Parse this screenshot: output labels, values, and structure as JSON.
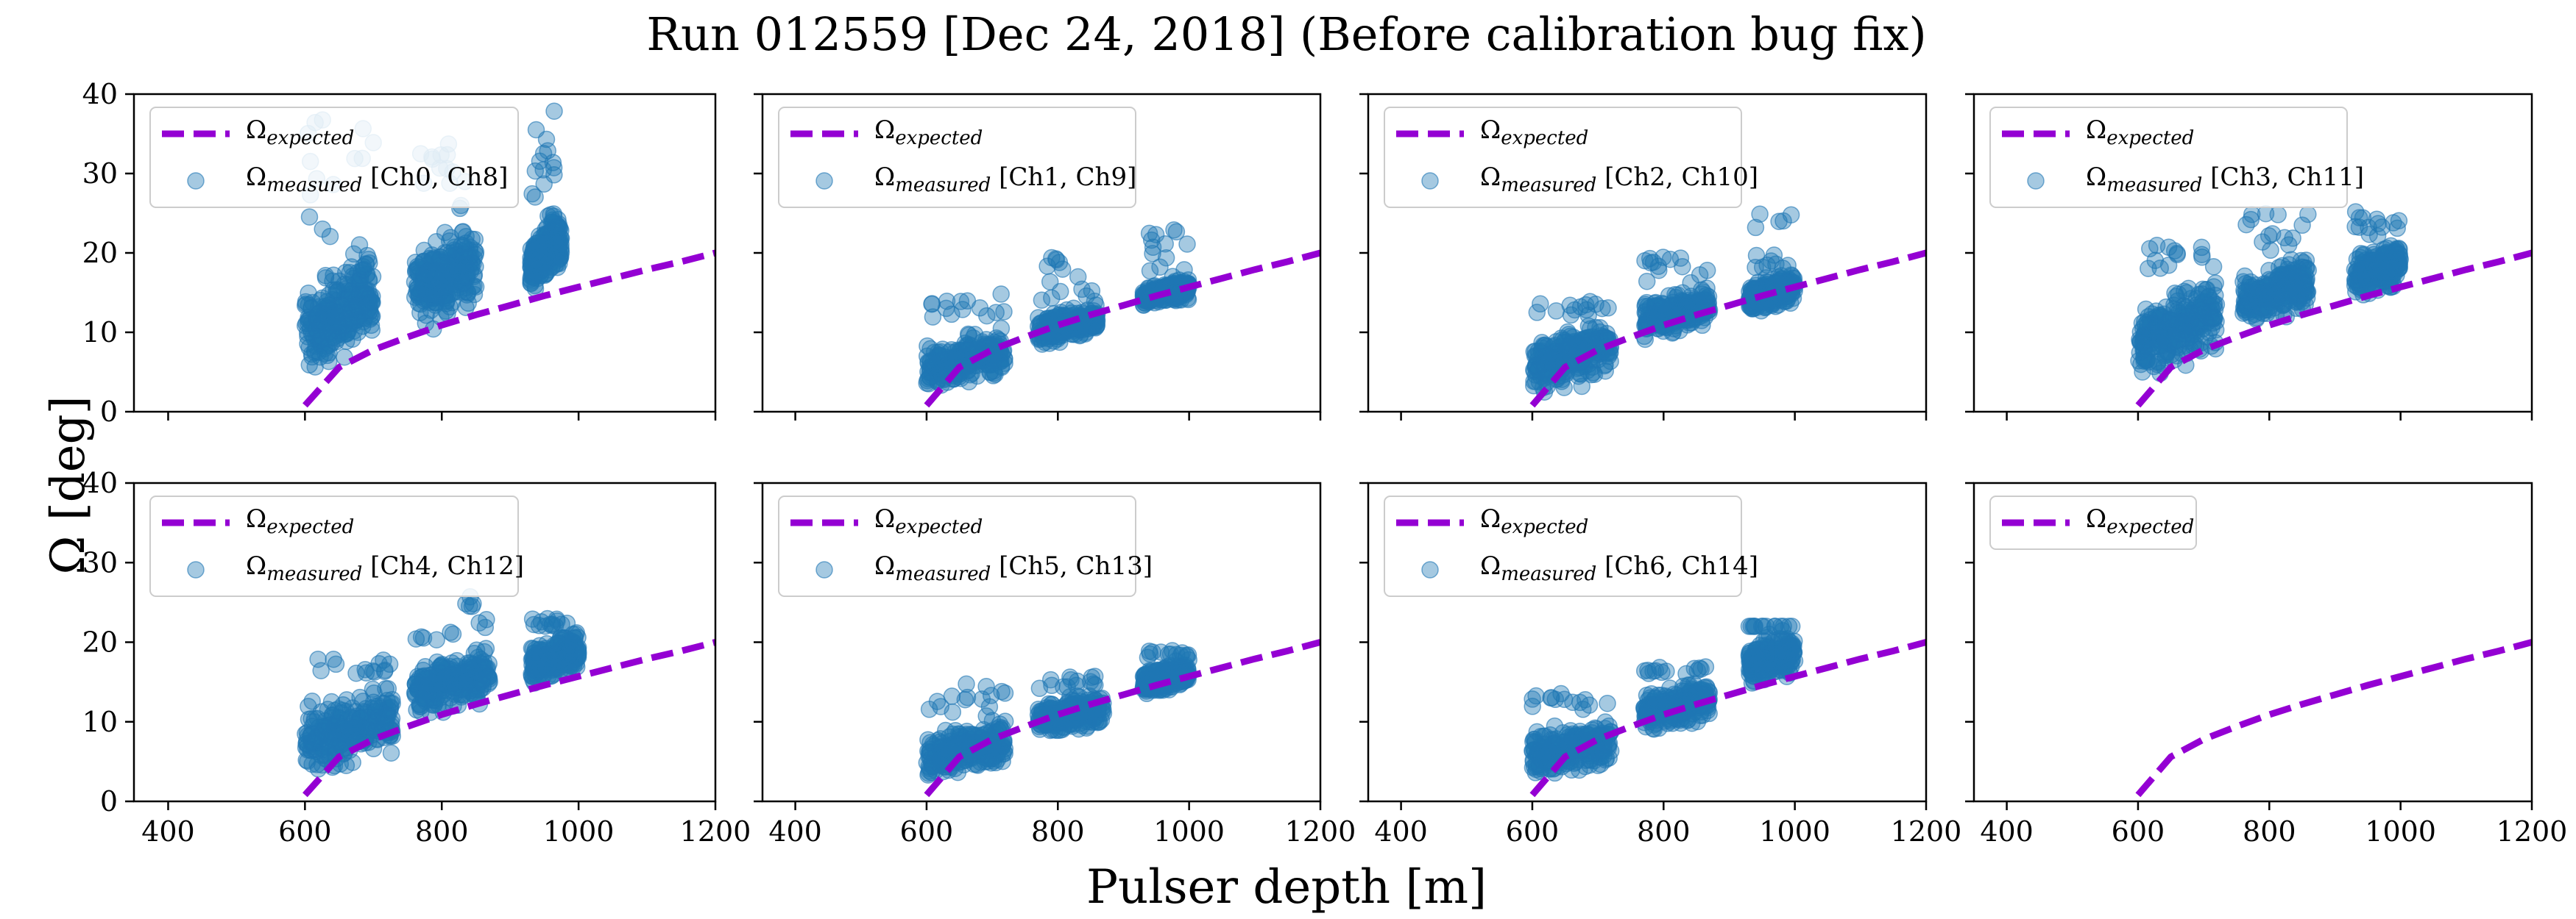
{
  "figure": {
    "title": "Run 012559 [Dec 24, 2018] (Before calibration bug fix)",
    "xlabel": "Pulser depth [m]",
    "ylabel": "Ω [deg]"
  },
  "colors": {
    "expected": "#9400d3",
    "measured": "#1f77b4"
  },
  "chart_data": [
    {
      "type": "scatter",
      "channels": "Ch0, Ch8",
      "xlim": [
        350,
        1200
      ],
      "ylim": [
        0,
        40
      ],
      "xticks": [
        400,
        600,
        800,
        1000,
        1200
      ],
      "yticks": [
        0,
        10,
        20,
        30,
        40
      ],
      "expected": {
        "name": "Ω_expected",
        "x": [
          600,
          650,
          700,
          750,
          800,
          850,
          900,
          950,
          1000,
          1050,
          1100,
          1150,
          1200
        ],
        "y": [
          0.8,
          5.6,
          7.8,
          9.4,
          10.9,
          12.2,
          13.4,
          14.6,
          15.7,
          16.8,
          17.9,
          18.9,
          20.0
        ]
      },
      "measured": {
        "name": "Ω_measured [Ch0, Ch8]",
        "clusters": [
          {
            "x_range": [
              600,
              700
            ],
            "y_low": 3,
            "y_high": 22,
            "y_max": 37
          },
          {
            "x_range": [
              760,
              850
            ],
            "y_low": 9,
            "y_high": 25,
            "y_max": 34
          },
          {
            "x_range": [
              930,
              975
            ],
            "y_low": 14,
            "y_high": 26,
            "y_max": 38
          }
        ]
      }
    },
    {
      "type": "scatter",
      "channels": "Ch1, Ch9",
      "xlim": [
        350,
        1200
      ],
      "ylim": [
        0,
        40
      ],
      "xticks": [
        400,
        600,
        800,
        1000,
        1200
      ],
      "yticks": [
        0,
        10,
        20,
        30,
        40
      ],
      "expected": {
        "name": "Ω_expected",
        "x": [
          600,
          650,
          700,
          750,
          800,
          850,
          900,
          950,
          1000,
          1050,
          1100,
          1150,
          1200
        ],
        "y": [
          0.8,
          5.6,
          7.8,
          9.4,
          10.9,
          12.2,
          13.4,
          14.6,
          15.7,
          16.8,
          17.9,
          18.9,
          20.0
        ]
      },
      "measured": {
        "name": "Ω_measured [Ch1, Ch9]",
        "clusters": [
          {
            "x_range": [
              600,
              720
            ],
            "y_low": 2,
            "y_high": 11,
            "y_max": 15
          },
          {
            "x_range": [
              770,
              860
            ],
            "y_low": 8,
            "y_high": 14,
            "y_max": 20
          },
          {
            "x_range": [
              930,
              1000
            ],
            "y_low": 13,
            "y_high": 17,
            "y_max": 23
          }
        ]
      }
    },
    {
      "type": "scatter",
      "channels": "Ch2, Ch10",
      "xlim": [
        350,
        1200
      ],
      "ylim": [
        0,
        40
      ],
      "xticks": [
        400,
        600,
        800,
        1000,
        1200
      ],
      "yticks": [
        0,
        10,
        20,
        30,
        40
      ],
      "expected": {
        "name": "Ω_expected",
        "x": [
          600,
          650,
          700,
          750,
          800,
          850,
          900,
          950,
          1000,
          1050,
          1100,
          1150,
          1200
        ],
        "y": [
          0.8,
          5.6,
          7.8,
          9.4,
          10.9,
          12.2,
          13.4,
          14.6,
          15.7,
          16.8,
          17.9,
          18.9,
          20.0
        ]
      },
      "measured": {
        "name": "Ω_measured [Ch2, Ch10]",
        "clusters": [
          {
            "x_range": [
              600,
              720
            ],
            "y_low": 2,
            "y_high": 12,
            "y_max": 14
          },
          {
            "x_range": [
              770,
              870
            ],
            "y_low": 9,
            "y_high": 16,
            "y_max": 20
          },
          {
            "x_range": [
              930,
              1000
            ],
            "y_low": 12,
            "y_high": 18,
            "y_max": 25
          }
        ]
      }
    },
    {
      "type": "scatter",
      "channels": "Ch3, Ch11",
      "xlim": [
        350,
        1200
      ],
      "ylim": [
        0,
        40
      ],
      "xticks": [
        400,
        600,
        800,
        1000,
        1200
      ],
      "yticks": [
        0,
        10,
        20,
        30,
        40
      ],
      "expected": {
        "name": "Ω_expected",
        "x": [
          600,
          650,
          700,
          750,
          800,
          850,
          900,
          950,
          1000,
          1050,
          1100,
          1150,
          1200
        ],
        "y": [
          0.8,
          5.6,
          7.8,
          9.4,
          10.9,
          12.2,
          13.4,
          14.6,
          15.7,
          16.8,
          17.9,
          18.9,
          20.0
        ]
      },
      "measured": {
        "name": "Ω_measured [Ch3, Ch11]",
        "clusters": [
          {
            "x_range": [
              600,
              720
            ],
            "y_low": 3,
            "y_high": 18,
            "y_max": 21
          },
          {
            "x_range": [
              760,
              860
            ],
            "y_low": 10,
            "y_high": 20,
            "y_max": 25
          },
          {
            "x_range": [
              930,
              1000
            ],
            "y_low": 14,
            "y_high": 22,
            "y_max": 26
          }
        ]
      }
    },
    {
      "type": "scatter",
      "channels": "Ch4, Ch12",
      "xlim": [
        350,
        1200
      ],
      "ylim": [
        0,
        40
      ],
      "xticks": [
        400,
        600,
        800,
        1000,
        1200
      ],
      "yticks": [
        0,
        10,
        20,
        30,
        40
      ],
      "expected": {
        "name": "Ω_expected",
        "x": [
          600,
          650,
          700,
          750,
          800,
          850,
          900,
          950,
          1000,
          1050,
          1100,
          1150,
          1200
        ],
        "y": [
          0.8,
          5.6,
          7.8,
          9.4,
          10.9,
          12.2,
          13.4,
          14.6,
          15.7,
          16.8,
          17.9,
          18.9,
          20.0
        ]
      },
      "measured": {
        "name": "Ω_measured [Ch4, Ch12]",
        "clusters": [
          {
            "x_range": [
              600,
              730
            ],
            "y_low": 2,
            "y_high": 16,
            "y_max": 18
          },
          {
            "x_range": [
              760,
              870
            ],
            "y_low": 10,
            "y_high": 20,
            "y_max": 26
          },
          {
            "x_range": [
              930,
              1000
            ],
            "y_low": 14,
            "y_high": 22,
            "y_max": 23
          }
        ]
      }
    },
    {
      "type": "scatter",
      "channels": "Ch5, Ch13",
      "xlim": [
        350,
        1200
      ],
      "ylim": [
        0,
        40
      ],
      "xticks": [
        400,
        600,
        800,
        1000,
        1200
      ],
      "yticks": [
        0,
        10,
        20,
        30,
        40
      ],
      "expected": {
        "name": "Ω_expected",
        "x": [
          600,
          650,
          700,
          750,
          800,
          850,
          900,
          950,
          1000,
          1050,
          1100,
          1150,
          1200
        ],
        "y": [
          0.8,
          5.6,
          7.8,
          9.4,
          10.9,
          12.2,
          13.4,
          14.6,
          15.7,
          16.8,
          17.9,
          18.9,
          20.0
        ]
      },
      "measured": {
        "name": "Ω_measured [Ch5, Ch13]",
        "clusters": [
          {
            "x_range": [
              600,
              720
            ],
            "y_low": 2,
            "y_high": 11,
            "y_max": 15
          },
          {
            "x_range": [
              770,
              870
            ],
            "y_low": 8,
            "y_high": 14,
            "y_max": 16
          },
          {
            "x_range": [
              930,
              1000
            ],
            "y_low": 13,
            "y_high": 18,
            "y_max": 19
          }
        ]
      }
    },
    {
      "type": "scatter",
      "channels": "Ch6, Ch14",
      "xlim": [
        350,
        1200
      ],
      "ylim": [
        0,
        40
      ],
      "xticks": [
        400,
        600,
        800,
        1000,
        1200
      ],
      "yticks": [
        0,
        10,
        20,
        30,
        40
      ],
      "expected": {
        "name": "Ω_expected",
        "x": [
          600,
          650,
          700,
          750,
          800,
          850,
          900,
          950,
          1000,
          1050,
          1100,
          1150,
          1200
        ],
        "y": [
          0.8,
          5.6,
          7.8,
          9.4,
          10.9,
          12.2,
          13.4,
          14.6,
          15.7,
          16.8,
          17.9,
          18.9,
          20.0
        ]
      },
      "measured": {
        "name": "Ω_measured [Ch6, Ch14]",
        "clusters": [
          {
            "x_range": [
              600,
              720
            ],
            "y_low": 2,
            "y_high": 11,
            "y_max": 14
          },
          {
            "x_range": [
              770,
              870
            ],
            "y_low": 8,
            "y_high": 16,
            "y_max": 17
          },
          {
            "x_range": [
              930,
              1000
            ],
            "y_low": 14,
            "y_high": 22,
            "y_max": 22
          }
        ]
      }
    },
    {
      "type": "line",
      "channels": "",
      "xlim": [
        350,
        1200
      ],
      "ylim": [
        0,
        40
      ],
      "xticks": [
        400,
        600,
        800,
        1000,
        1200
      ],
      "yticks": [
        0,
        10,
        20,
        30,
        40
      ],
      "expected": {
        "name": "Ω_expected",
        "x": [
          600,
          650,
          700,
          750,
          800,
          850,
          900,
          950,
          1000,
          1050,
          1100,
          1150,
          1200
        ],
        "y": [
          0.8,
          5.6,
          7.8,
          9.4,
          10.9,
          12.2,
          13.4,
          14.6,
          15.7,
          16.8,
          17.9,
          18.9,
          20.0
        ]
      },
      "measured": null
    }
  ]
}
